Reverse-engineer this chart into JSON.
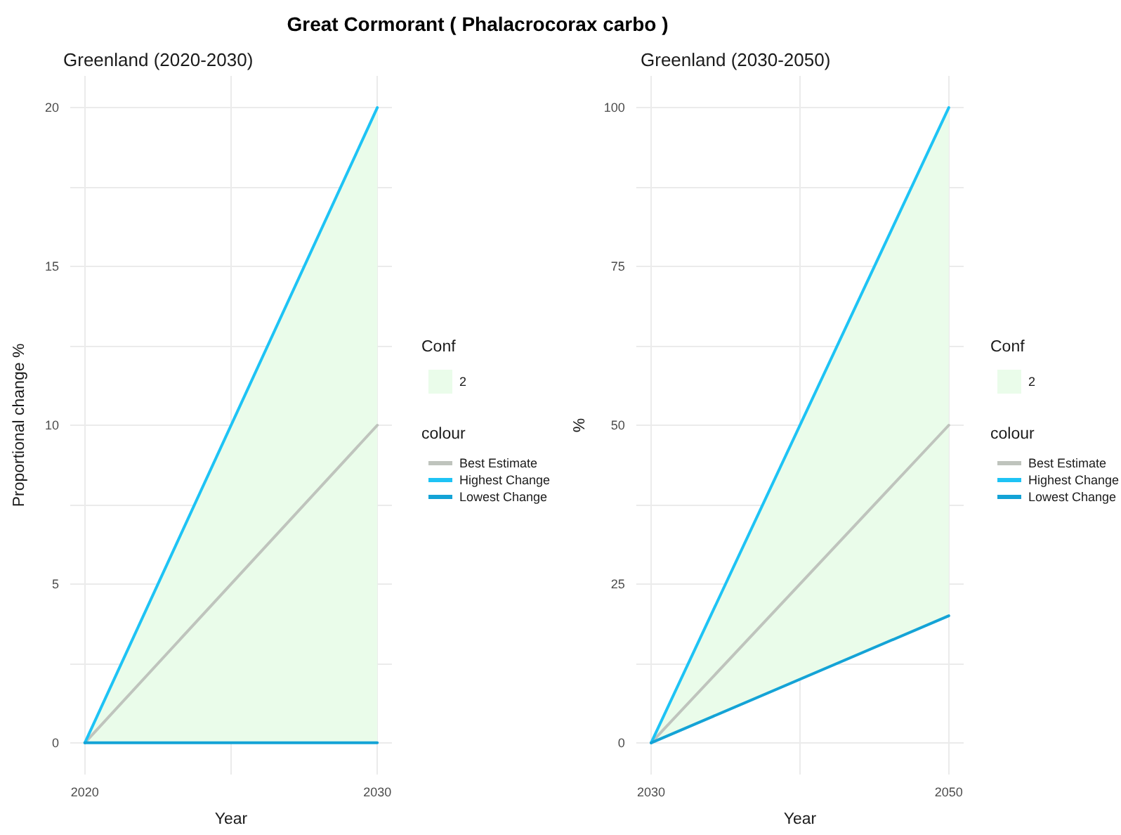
{
  "chart_data": [
    {
      "type": "line",
      "title": "Great Cormorant ( Phalacrocorax carbo )",
      "subtitle": "Greenland (2020-2030)",
      "xlabel": "Year",
      "ylabel": "Proportional change %",
      "legend_title": "Conf",
      "annotations": [
        "colour"
      ],
      "legend": "right",
      "grid": true,
      "marker": "none",
      "line_style": "solid",
      "x": [
        2020,
        2030
      ],
      "xlim": [
        2019.5,
        2030.5
      ],
      "xticks": [
        2020,
        {
          "value": 2025,
          "label": null
        },
        2030
      ],
      "ylim": [
        -1,
        21
      ],
      "yticks": [
        0,
        {
          "value": 2.5,
          "label": null
        },
        5,
        {
          "value": 7.5,
          "label": null
        },
        10,
        {
          "value": 12.5,
          "label": null
        },
        15,
        {
          "value": 17.5,
          "label": null
        },
        20
      ],
      "series": [
        {
          "name": "2",
          "type": "area",
          "color": "#eafcea",
          "values": [
            null,
            null
          ],
          "lower": [
            0,
            0
          ],
          "upper": [
            0,
            20
          ]
        },
        {
          "name": "Best Estimate",
          "color": "#bfc4bd",
          "values": [
            0,
            10
          ]
        },
        {
          "name": "Highest Change",
          "color": "#1ec3f5",
          "values": [
            0,
            20
          ]
        },
        {
          "name": "Lowest Change",
          "color": "#14a3d6",
          "values": [
            0,
            0
          ]
        }
      ]
    },
    {
      "type": "line",
      "subtitle": "Greenland (2030-2050)",
      "xlabel": "Year",
      "ylabel": "%",
      "legend_title": "Conf",
      "annotations": [
        "colour"
      ],
      "legend": "right",
      "grid": true,
      "marker": "none",
      "line_style": "solid",
      "x": [
        2030,
        2050
      ],
      "xlim": [
        2029,
        2051
      ],
      "xticks": [
        2030,
        {
          "value": 2040,
          "label": null
        },
        2050
      ],
      "ylim": [
        -5,
        105
      ],
      "yticks": [
        0,
        {
          "value": 12.5,
          "label": null
        },
        25,
        {
          "value": 37.5,
          "label": null
        },
        50,
        {
          "value": 62.5,
          "label": null
        },
        75,
        {
          "value": 87.5,
          "label": null
        },
        100
      ],
      "series": [
        {
          "name": "2",
          "type": "area",
          "color": "#eafcea",
          "values": [
            null,
            null
          ],
          "lower": [
            0,
            20
          ],
          "upper": [
            0,
            100
          ]
        },
        {
          "name": "Best Estimate",
          "color": "#bfc4bd",
          "values": [
            0,
            50
          ]
        },
        {
          "name": "Highest Change",
          "color": "#1ec3f5",
          "values": [
            0,
            100
          ]
        },
        {
          "name": "Lowest Change",
          "color": "#14a3d6",
          "values": [
            0,
            20
          ]
        }
      ]
    }
  ]
}
